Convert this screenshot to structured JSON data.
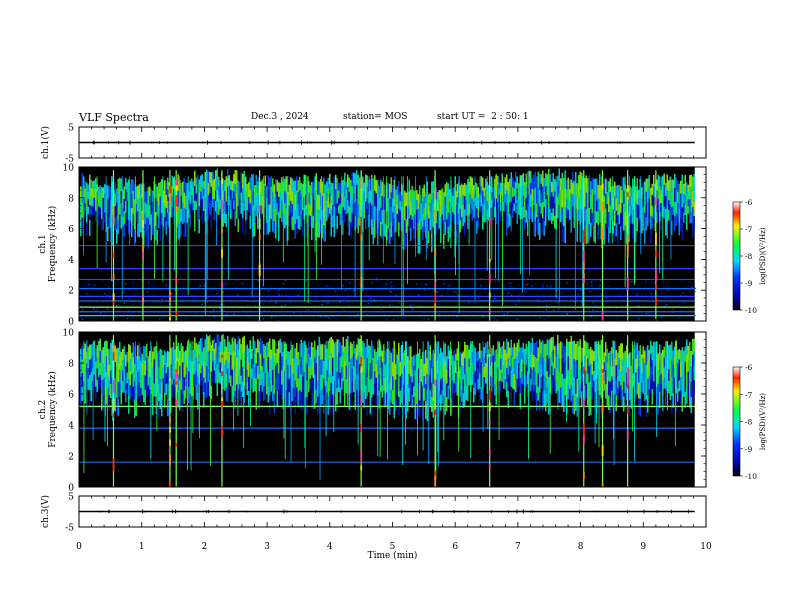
{
  "header": {
    "title": "VLF Spectra",
    "date": "Dec.3 , 2024",
    "station": "station= MOS",
    "start": "start UT =  2 : 50: 1"
  },
  "colors": {
    "background": "#000000",
    "axis": "#000000",
    "trace": "#000000"
  },
  "chart_data": [
    {
      "type": "line",
      "id": "ch1_waveform",
      "ylabel": "ch.1(V)",
      "ylim": [
        -5,
        5
      ],
      "yticks": [
        "5",
        "-5"
      ],
      "xlim": [
        0,
        10
      ],
      "series": [
        {
          "x": [
            0,
            9.82
          ],
          "y": [
            0,
            0
          ]
        }
      ]
    },
    {
      "type": "heatmap",
      "id": "ch1_spectrogram",
      "ylabel": [
        "ch.1",
        "Frequency (kHz)"
      ],
      "ylim": [
        0,
        10
      ],
      "yticks": [
        "0",
        "2",
        "4",
        "6",
        "8",
        "10"
      ],
      "xlim": [
        0,
        10
      ],
      "data_end_min": 9.82,
      "colorbar": {
        "label": "log(PSD)(V²/Hz)",
        "range": [
          -10,
          -6
        ],
        "ticks": [
          "-6",
          "-7",
          "-8",
          "-9",
          "-10"
        ]
      },
      "band_top_khz": [
        9.2,
        8.7,
        9.6,
        9.0,
        9.4,
        8.6,
        9.1,
        9.5,
        8.9,
        9.3
      ],
      "band_bottom_khz": [
        6.4,
        5.5,
        6.8,
        5.9,
        6.2,
        5.1,
        6.6,
        6.0,
        5.7,
        6.3
      ],
      "hum_lines_khz": [
        0.35,
        0.6,
        0.9,
        1.3,
        1.6,
        2.1,
        2.7,
        3.4,
        4.9
      ],
      "hum_line_colors": [
        "#00e0ff",
        "#1a6cff",
        "#80ff60",
        "#1a6cff",
        "#2a44ff",
        "#1a6cff",
        "#2a44ff",
        "#2a44ff",
        "#2a44ff"
      ],
      "low_noise_floor_khz": 2.8,
      "strong_spherics_min": [
        0.55,
        1.02,
        1.45,
        1.55,
        2.28,
        2.88,
        4.5,
        5.68,
        6.55,
        8.05,
        8.35,
        8.75,
        9.2
      ]
    },
    {
      "type": "heatmap",
      "id": "ch2_spectrogram",
      "ylabel": [
        "ch.2",
        "Frequency (kHz)"
      ],
      "ylim": [
        0,
        10
      ],
      "yticks": [
        "0",
        "2",
        "4",
        "6",
        "8",
        "10"
      ],
      "xlim": [
        0,
        10
      ],
      "data_end_min": 9.82,
      "colorbar": {
        "label": "log(PSD)(V²/Hz)",
        "range": [
          -10,
          -6
        ],
        "ticks": [
          "-6",
          "-7",
          "-8",
          "-9",
          "-10"
        ]
      },
      "band_top_khz": [
        9.3,
        8.8,
        9.5,
        9.1,
        9.4,
        8.7,
        9.2,
        9.5,
        8.9,
        9.2
      ],
      "band_bottom_khz": [
        5.8,
        5.2,
        6.0,
        5.4,
        5.6,
        5.0,
        6.1,
        5.5,
        5.3,
        5.7
      ],
      "hum_lines_khz": [
        5.2,
        3.8,
        1.6
      ],
      "hum_line_colors": [
        "#80ff60",
        "#1a6cff",
        "#1a6cff"
      ],
      "low_noise_floor_khz": 0,
      "strong_spherics_min": [
        0.55,
        1.45,
        1.55,
        2.28,
        4.5,
        5.68,
        6.55,
        8.05,
        8.35,
        8.75
      ]
    },
    {
      "type": "line",
      "id": "ch3_waveform",
      "ylabel": "ch.3(V)",
      "ylim": [
        -5,
        5
      ],
      "yticks": [
        "5",
        "-5"
      ],
      "xlim": [
        0,
        10
      ],
      "xlabel": "Time (min)",
      "xticks": [
        "0",
        "1",
        "2",
        "3",
        "4",
        "5",
        "6",
        "7",
        "8",
        "9",
        "10"
      ],
      "series": [
        {
          "x": [
            0,
            9.82
          ],
          "y": [
            0,
            0
          ]
        }
      ]
    }
  ]
}
